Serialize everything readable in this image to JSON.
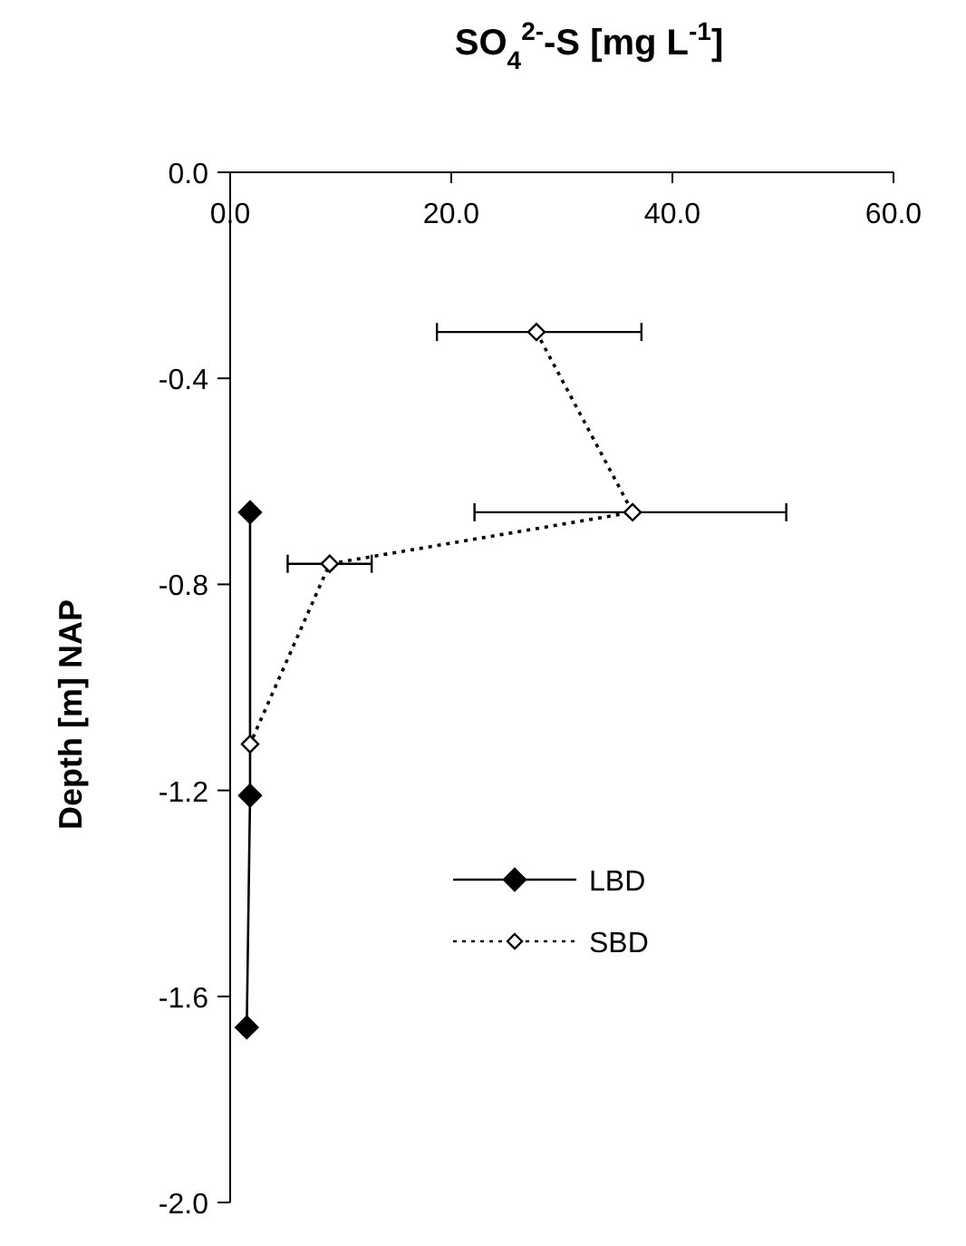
{
  "chart_data": {
    "type": "line",
    "title": "SO$_{4}$$^{2-}$-S [mg L$^{-1}$]",
    "ylabel": "Depth [m] NAP",
    "xlim": [
      0,
      60
    ],
    "xticks": [
      {
        "value": 0,
        "label": "0.0"
      },
      {
        "value": 20,
        "label": "20.0"
      },
      {
        "value": 40,
        "label": "40.0"
      },
      {
        "value": 60,
        "label": "60.0"
      }
    ],
    "ylim": [
      -2,
      0
    ],
    "yticks": [
      {
        "value": 0,
        "label": "0.0"
      },
      {
        "value": -0.4,
        "label": "-0.4"
      },
      {
        "value": -0.8,
        "label": "-0.8"
      },
      {
        "value": -1.2,
        "label": "-1.2"
      },
      {
        "value": -1.6,
        "label": "-1.6"
      },
      {
        "value": -2,
        "label": "-2.0"
      }
    ],
    "grid": false,
    "legend": "bottom right",
    "series": [
      {
        "name": "LBD",
        "color": "#000000",
        "marker": "diamond",
        "line_style": "solid",
        "x": [
          1.8,
          1.8,
          1.5
        ],
        "values": [
          -0.66,
          -1.21,
          -1.66
        ]
      },
      {
        "name": "SBD",
        "color": "#000000",
        "marker": "diamond",
        "line_style": "dotted",
        "x": [
          27.7,
          36.4,
          9.0,
          1.8
        ],
        "values": [
          -0.31,
          -0.66,
          -0.76,
          -1.11
        ],
        "xerrors": [
          [
            18.7,
            37.2
          ],
          [
            22.1,
            50.3
          ],
          [
            5.2,
            12.8
          ],
          null
        ]
      }
    ]
  }
}
